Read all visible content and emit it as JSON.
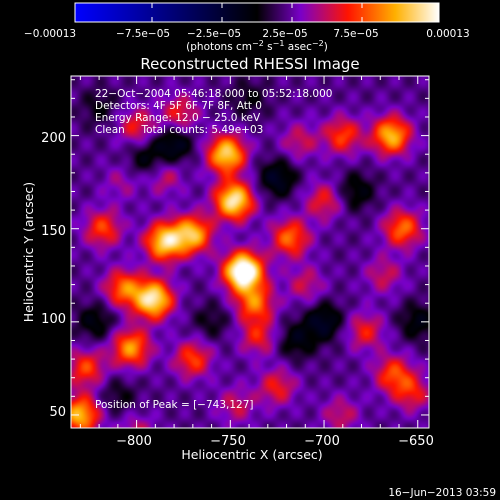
{
  "chart_data": {
    "type": "heatmap",
    "title": "Reconstructed RHESSI Image",
    "xlabel": "Heliocentric X (arcsec)",
    "ylabel": "Heliocentric Y (arcsec)",
    "xlim": [
      -835,
      -644
    ],
    "ylim": [
      43,
      232
    ],
    "xticks": [
      -800,
      -750,
      -700,
      -650
    ],
    "xtick_labels": [
      "−800",
      "−750",
      "−700",
      "−650"
    ],
    "yticks": [
      50,
      100,
      150,
      200
    ],
    "ytick_labels": [
      "50",
      "100",
      "150",
      "200"
    ],
    "colorbar": {
      "range": [
        -0.00013,
        0.00013
      ],
      "ticks": [
        -0.00013,
        -7.5e-05,
        -2.5e-05,
        2.5e-05,
        7.5e-05,
        0.00013
      ],
      "tick_labels": [
        "−0.00013",
        "−7.5e−05",
        "−2.5e−05",
        "2.5e−05",
        "7.5e−05",
        "0.00013"
      ],
      "unit_prefix": "(photons cm",
      "unit_sup1": "−2",
      "unit_mid": " s",
      "unit_sup2": "−1",
      "unit_mid2": " asec",
      "unit_sup3": "−2",
      "unit_suffix": ")"
    },
    "annotations": [
      "22−Oct−2004 05:46:18.000 to 05:52:18.000",
      "Detectors: 4F 5F 6F 7F 8F, Att 0",
      "Energy Range: 12.0 − 25.0 keV",
      "Clean     Total counts: 5.49e+03"
    ],
    "peak_label": "Position of Peak = [−743,127]",
    "sources": [
      {
        "x": -743,
        "y": 127,
        "value": 0.00013
      },
      {
        "x": -748,
        "y": 165,
        "value": 0.0001
      },
      {
        "x": -752,
        "y": 190,
        "value": 9e-05
      },
      {
        "x": -770,
        "y": 147,
        "value": 8e-05
      },
      {
        "x": -785,
        "y": 143,
        "value": 9e-05
      },
      {
        "x": -791,
        "y": 112,
        "value": 0.0001
      },
      {
        "x": -807,
        "y": 118,
        "value": 6e-05
      },
      {
        "x": -803,
        "y": 86,
        "value": 7e-05
      },
      {
        "x": -770,
        "y": 80,
        "value": 5e-05
      },
      {
        "x": -737,
        "y": 110,
        "value": 6e-05
      },
      {
        "x": -735,
        "y": 92,
        "value": 4e-05
      },
      {
        "x": -718,
        "y": 145,
        "value": 6e-05
      },
      {
        "x": -700,
        "y": 165,
        "value": 4e-05
      },
      {
        "x": -713,
        "y": 197,
        "value": 3e-05
      },
      {
        "x": -664,
        "y": 200,
        "value": 8e-05
      },
      {
        "x": -690,
        "y": 200,
        "value": 5e-05
      },
      {
        "x": -658,
        "y": 150,
        "value": 6e-05
      },
      {
        "x": -668,
        "y": 125,
        "value": 3e-05
      },
      {
        "x": -678,
        "y": 95,
        "value": 4e-05
      },
      {
        "x": -663,
        "y": 72,
        "value": 5e-05
      },
      {
        "x": -653,
        "y": 62,
        "value": 4e-05
      },
      {
        "x": -830,
        "y": 50,
        "value": 8e-05
      },
      {
        "x": -827,
        "y": 75,
        "value": 5e-05
      },
      {
        "x": -818,
        "y": 150,
        "value": 5e-05
      },
      {
        "x": -800,
        "y": 205,
        "value": 4e-05
      },
      {
        "x": -808,
        "y": 175,
        "value": 2e-05
      },
      {
        "x": -777,
        "y": 212,
        "value": 4e-05
      },
      {
        "x": -785,
        "y": 178,
        "value": 3e-05
      },
      {
        "x": -725,
        "y": 65,
        "value": 4e-05
      },
      {
        "x": -747,
        "y": 55,
        "value": 3e-05
      },
      {
        "x": -691,
        "y": 50,
        "value": 3e-05
      },
      {
        "x": -710,
        "y": 120,
        "value": 3e-05
      },
      {
        "x": -800,
        "y": 40,
        "value": 3e-05
      },
      {
        "x": -780,
        "y": 195,
        "value": -4e-05
      },
      {
        "x": -795,
        "y": 187,
        "value": -3e-05
      },
      {
        "x": -725,
        "y": 177,
        "value": -4e-05
      },
      {
        "x": -700,
        "y": 100,
        "value": -4e-05
      },
      {
        "x": -715,
        "y": 90,
        "value": -3e-05
      },
      {
        "x": -683,
        "y": 170,
        "value": -3e-05
      },
      {
        "x": -822,
        "y": 100,
        "value": -3e-05
      },
      {
        "x": -810,
        "y": 60,
        "value": -2e-05
      },
      {
        "x": -760,
        "y": 100,
        "value": -2e-05
      },
      {
        "x": -650,
        "y": 100,
        "value": -3e-05
      },
      {
        "x": -820,
        "y": 215,
        "value": -2e-05
      },
      {
        "x": -740,
        "y": 220,
        "value": -2e-05
      }
    ]
  },
  "footer": {
    "timestamp": "16−Jun−2013 03:59"
  }
}
